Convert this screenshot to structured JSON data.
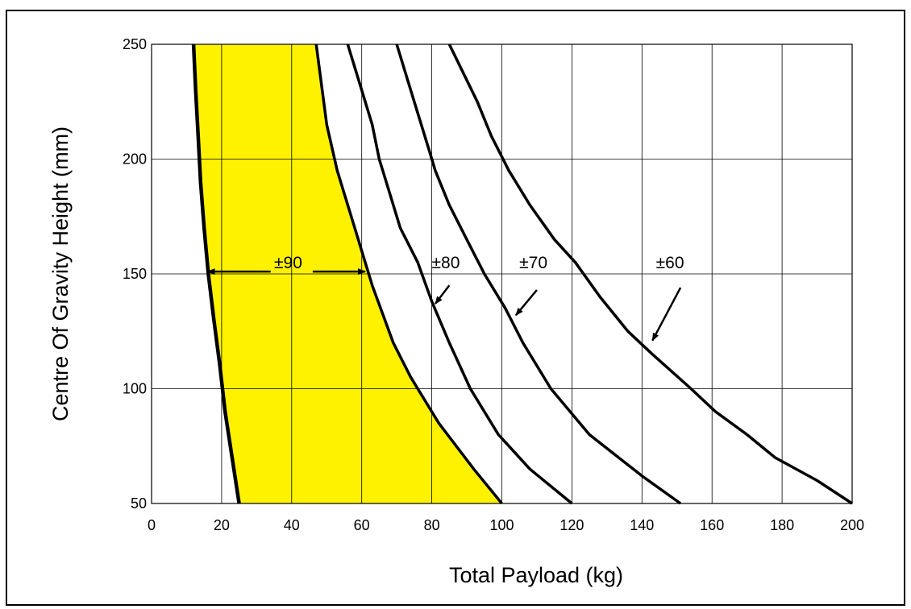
{
  "chart_data": {
    "type": "line",
    "title": "",
    "xlabel": "Total Payload (kg)",
    "ylabel": "Centre Of Gravity Height (mm)",
    "xlim": [
      0,
      200
    ],
    "ylim": [
      50,
      250
    ],
    "xticks": [
      0,
      20,
      40,
      60,
      80,
      100,
      120,
      140,
      160,
      180,
      200
    ],
    "yticks": [
      50,
      100,
      150,
      200,
      250
    ],
    "grid": true,
    "fill_color": "#FFF200",
    "line_color": "#000000",
    "boundary_left": {
      "name": "",
      "points": [
        [
          25,
          50
        ],
        [
          23,
          70
        ],
        [
          21,
          90
        ],
        [
          19.5,
          110
        ],
        [
          17.8,
          130
        ],
        [
          16.2,
          150
        ],
        [
          15,
          170
        ],
        [
          14,
          190
        ],
        [
          13.3,
          210
        ],
        [
          12.6,
          230
        ],
        [
          12,
          250
        ]
      ]
    },
    "series": [
      {
        "name": "±90",
        "points": [
          [
            100,
            50
          ],
          [
            92,
            65
          ],
          [
            82,
            85
          ],
          [
            74,
            105
          ],
          [
            69,
            120
          ],
          [
            63,
            145
          ],
          [
            60,
            160
          ],
          [
            57,
            175
          ],
          [
            53,
            195
          ],
          [
            50,
            215
          ],
          [
            47,
            250
          ]
        ]
      },
      {
        "name": "±80",
        "points": [
          [
            120,
            50
          ],
          [
            108,
            65
          ],
          [
            99,
            80
          ],
          [
            91,
            100
          ],
          [
            85,
            120
          ],
          [
            80,
            138
          ],
          [
            76,
            155
          ],
          [
            71,
            170
          ],
          [
            68,
            185
          ],
          [
            65,
            200
          ],
          [
            63,
            215
          ],
          [
            60,
            230
          ],
          [
            56,
            250
          ]
        ]
      },
      {
        "name": "±70",
        "points": [
          [
            151,
            50
          ],
          [
            140,
            62
          ],
          [
            125,
            80
          ],
          [
            114,
            100
          ],
          [
            106,
            120
          ],
          [
            101,
            135
          ],
          [
            95,
            150
          ],
          [
            90,
            165
          ],
          [
            85,
            180
          ],
          [
            81,
            195
          ],
          [
            79,
            205
          ],
          [
            76,
            220
          ],
          [
            70,
            250
          ]
        ]
      },
      {
        "name": "±60",
        "points": [
          [
            200,
            50
          ],
          [
            190,
            60
          ],
          [
            178,
            70
          ],
          [
            170,
            80
          ],
          [
            161,
            90
          ],
          [
            154,
            100
          ],
          [
            143,
            115
          ],
          [
            136,
            125
          ],
          [
            128,
            140
          ],
          [
            121,
            155
          ],
          [
            115,
            165
          ],
          [
            108,
            180
          ],
          [
            102,
            195
          ],
          [
            97,
            210
          ],
          [
            93,
            225
          ],
          [
            85,
            250
          ]
        ]
      }
    ],
    "annotations": [
      {
        "text": "±90",
        "x": 39,
        "y": 155
      },
      {
        "text": "±80",
        "x": 84,
        "y": 155
      },
      {
        "text": "±70",
        "x": 109,
        "y": 155
      },
      {
        "text": "±60",
        "x": 148,
        "y": 155
      }
    ]
  }
}
